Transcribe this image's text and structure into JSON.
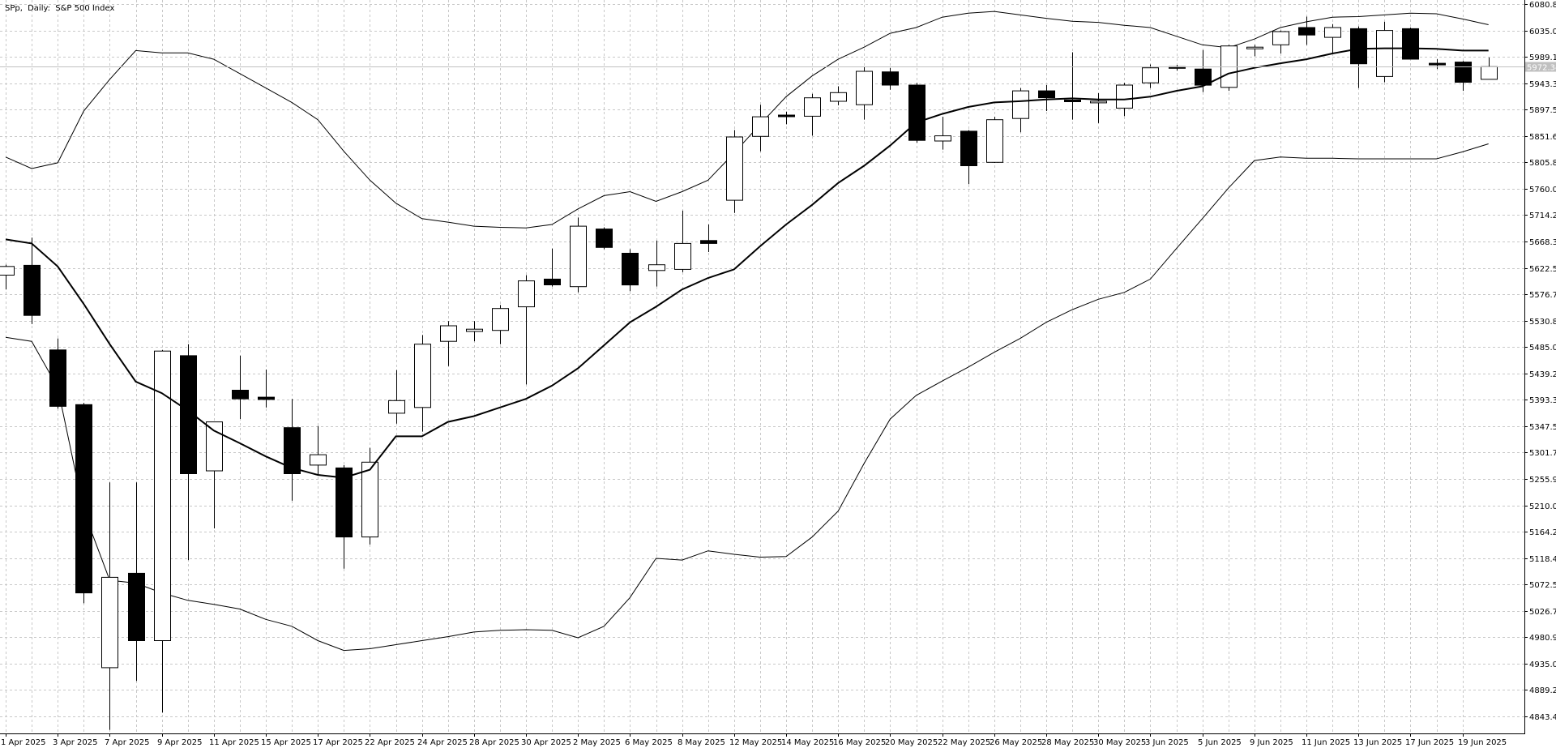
{
  "header": {
    "symbol": "SPp,",
    "timeframe": "Daily:",
    "description": "S&P 500 Index"
  },
  "price_tag": "5972.34",
  "colors": {
    "background": "#ffffff",
    "grid": "#c8c8c8",
    "candle_outline": "#000000",
    "bull_fill": "#ffffff",
    "bear_fill": "#000000",
    "ma_line": "#000000",
    "band_line": "#000000",
    "current_price_line": "#c0c0c0",
    "price_tag_bg": "#c0c0c0"
  },
  "chart_data": {
    "type": "candlestick",
    "title": "SPp, Daily: S&P 500 Index",
    "ylim": [
      4820,
      6085
    ],
    "y_ticks": [
      6080.84,
      6035.01,
      5989.18,
      5943.35,
      5897.52,
      5851.69,
      5805.86,
      5760.03,
      5714.2,
      5668.37,
      5622.54,
      5576.71,
      5530.88,
      5485.05,
      5439.22,
      5393.39,
      5347.56,
      5301.73,
      5255.9,
      5210.07,
      5164.24,
      5118.41,
      5072.58,
      5026.75,
      4980.92,
      4935.09,
      4889.26,
      4843.43
    ],
    "y_tick_labels": [
      "6080.84",
      "6035.01",
      "5989.18",
      "5943.35",
      "5897.52",
      "5851.69",
      "5805.86",
      "5760.03",
      "5714.20",
      "5668.37",
      "5622.54",
      "5576.71",
      "5530.88",
      "5485.05",
      "5439.22",
      "5393.39",
      "5347.56",
      "5301.73",
      "5255.90",
      "5210.07",
      "5164.24",
      "5118.41",
      "5072.58",
      "5026.75",
      "4980.92",
      "4935.09",
      "4889.26",
      "4843.43"
    ],
    "x_labels": [
      {
        "index": 0,
        "label": "1 Apr 2025"
      },
      {
        "index": 2,
        "label": "3 Apr 2025"
      },
      {
        "index": 4,
        "label": "7 Apr 2025"
      },
      {
        "index": 6,
        "label": "9 Apr 2025"
      },
      {
        "index": 8,
        "label": "11 Apr 2025"
      },
      {
        "index": 10,
        "label": "15 Apr 2025"
      },
      {
        "index": 12,
        "label": "17 Apr 2025"
      },
      {
        "index": 14,
        "label": "22 Apr 2025"
      },
      {
        "index": 16,
        "label": "24 Apr 2025"
      },
      {
        "index": 18,
        "label": "28 Apr 2025"
      },
      {
        "index": 20,
        "label": "30 Apr 2025"
      },
      {
        "index": 22,
        "label": "2 May 2025"
      },
      {
        "index": 24,
        "label": "6 May 2025"
      },
      {
        "index": 26,
        "label": "8 May 2025"
      },
      {
        "index": 28,
        "label": "12 May 2025"
      },
      {
        "index": 30,
        "label": "14 May 2025"
      },
      {
        "index": 32,
        "label": "16 May 2025"
      },
      {
        "index": 34,
        "label": "20 May 2025"
      },
      {
        "index": 36,
        "label": "22 May 2025"
      },
      {
        "index": 38,
        "label": "26 May 2025"
      },
      {
        "index": 40,
        "label": "28 May 2025"
      },
      {
        "index": 42,
        "label": "30 May 2025"
      },
      {
        "index": 44,
        "label": "3 Jun 2025"
      },
      {
        "index": 46,
        "label": "5 Jun 2025"
      },
      {
        "index": 48,
        "label": "9 Jun 2025"
      },
      {
        "index": 50,
        "label": "11 Jun 2025"
      },
      {
        "index": 52,
        "label": "13 Jun 2025"
      },
      {
        "index": 54,
        "label": "17 Jun 2025"
      },
      {
        "index": 56,
        "label": "19 Jun 2025"
      }
    ],
    "candles": [
      {
        "o": 5610,
        "h": 5628,
        "l": 5585,
        "c": 5625
      },
      {
        "o": 5627,
        "h": 5675,
        "l": 5525,
        "c": 5540
      },
      {
        "o": 5480,
        "h": 5500,
        "l": 5378,
        "c": 5382
      },
      {
        "o": 5385,
        "h": 5388,
        "l": 5040,
        "c": 5058
      },
      {
        "o": 4928,
        "h": 5250,
        "l": 4820,
        "c": 5085
      },
      {
        "o": 5092,
        "h": 5250,
        "l": 4905,
        "c": 4975
      },
      {
        "o": 4975,
        "h": 5480,
        "l": 4850,
        "c": 5478
      },
      {
        "o": 5470,
        "h": 5490,
        "l": 5115,
        "c": 5265
      },
      {
        "o": 5270,
        "h": 5355,
        "l": 5170,
        "c": 5355
      },
      {
        "o": 5410,
        "h": 5470,
        "l": 5360,
        "c": 5395
      },
      {
        "o": 5398,
        "h": 5446,
        "l": 5380,
        "c": 5394
      },
      {
        "o": 5345,
        "h": 5395,
        "l": 5218,
        "c": 5265
      },
      {
        "o": 5280,
        "h": 5348,
        "l": 5262,
        "c": 5298
      },
      {
        "o": 5275,
        "h": 5280,
        "l": 5100,
        "c": 5155
      },
      {
        "o": 5155,
        "h": 5310,
        "l": 5142,
        "c": 5285
      },
      {
        "o": 5370,
        "h": 5445,
        "l": 5352,
        "c": 5392
      },
      {
        "o": 5380,
        "h": 5506,
        "l": 5338,
        "c": 5490
      },
      {
        "o": 5495,
        "h": 5530,
        "l": 5452,
        "c": 5522
      },
      {
        "o": 5512,
        "h": 5530,
        "l": 5495,
        "c": 5516
      },
      {
        "o": 5514,
        "h": 5558,
        "l": 5490,
        "c": 5552
      },
      {
        "o": 5555,
        "h": 5610,
        "l": 5420,
        "c": 5600
      },
      {
        "o": 5603,
        "h": 5656,
        "l": 5590,
        "c": 5593
      },
      {
        "o": 5590,
        "h": 5710,
        "l": 5580,
        "c": 5695
      },
      {
        "o": 5690,
        "h": 5693,
        "l": 5655,
        "c": 5658
      },
      {
        "o": 5648,
        "h": 5655,
        "l": 5582,
        "c": 5593
      },
      {
        "o": 5618,
        "h": 5670,
        "l": 5590,
        "c": 5628
      },
      {
        "o": 5620,
        "h": 5722,
        "l": 5615,
        "c": 5665
      },
      {
        "o": 5670,
        "h": 5698,
        "l": 5650,
        "c": 5665
      },
      {
        "o": 5740,
        "h": 5862,
        "l": 5718,
        "c": 5850
      },
      {
        "o": 5851,
        "h": 5906,
        "l": 5825,
        "c": 5885
      },
      {
        "o": 5888,
        "h": 5894,
        "l": 5872,
        "c": 5886
      },
      {
        "o": 5886,
        "h": 5925,
        "l": 5852,
        "c": 5918
      },
      {
        "o": 5912,
        "h": 5938,
        "l": 5905,
        "c": 5927
      },
      {
        "o": 5906,
        "h": 5972,
        "l": 5880,
        "c": 5964
      },
      {
        "o": 5963,
        "h": 5970,
        "l": 5932,
        "c": 5940
      },
      {
        "o": 5940,
        "h": 5944,
        "l": 5840,
        "c": 5844
      },
      {
        "o": 5843,
        "h": 5885,
        "l": 5828,
        "c": 5852
      },
      {
        "o": 5860,
        "h": 5862,
        "l": 5768,
        "c": 5800
      },
      {
        "o": 5806,
        "h": 5885,
        "l": 5805,
        "c": 5880
      },
      {
        "o": 5882,
        "h": 5935,
        "l": 5858,
        "c": 5930
      },
      {
        "o": 5930,
        "h": 5940,
        "l": 5895,
        "c": 5918
      },
      {
        "o": 5914,
        "h": 5997,
        "l": 5880,
        "c": 5912
      },
      {
        "o": 5910,
        "h": 5926,
        "l": 5874,
        "c": 5912
      },
      {
        "o": 5900,
        "h": 5944,
        "l": 5886,
        "c": 5940
      },
      {
        "o": 5944,
        "h": 5976,
        "l": 5935,
        "c": 5970
      },
      {
        "o": 5972,
        "h": 5975,
        "l": 5965,
        "c": 5970
      },
      {
        "o": 5968,
        "h": 6001,
        "l": 5928,
        "c": 5940
      },
      {
        "o": 5936,
        "h": 6010,
        "l": 5930,
        "c": 6008
      },
      {
        "o": 6005,
        "h": 6010,
        "l": 5990,
        "c": 6006
      },
      {
        "o": 6010,
        "h": 6035,
        "l": 5995,
        "c": 6033
      },
      {
        "o": 6040,
        "h": 6059,
        "l": 6010,
        "c": 6027
      },
      {
        "o": 6023,
        "h": 6046,
        "l": 5995,
        "c": 6040
      },
      {
        "o": 6038,
        "h": 6042,
        "l": 5935,
        "c": 5977
      },
      {
        "o": 5955,
        "h": 6050,
        "l": 5945,
        "c": 6035
      },
      {
        "o": 6038,
        "h": 6040,
        "l": 5985,
        "c": 5985
      },
      {
        "o": 5978,
        "h": 5985,
        "l": 5968,
        "c": 5976
      },
      {
        "o": 5980,
        "h": 5982,
        "l": 5930,
        "c": 5945
      },
      {
        "o": 5950,
        "h": 5988,
        "l": 5950,
        "c": 5972
      }
    ],
    "ma": [
      5672,
      5665,
      5625,
      5560,
      5490,
      5425,
      5405,
      5375,
      5340,
      5318,
      5295,
      5275,
      5263,
      5258,
      5272,
      5330,
      5330,
      5355,
      5365,
      5380,
      5395,
      5418,
      5448,
      5488,
      5528,
      5555,
      5585,
      5605,
      5620,
      5660,
      5698,
      5732,
      5770,
      5800,
      5835,
      5875,
      5890,
      5902,
      5910,
      5912,
      5915,
      5917,
      5915,
      5915,
      5920,
      5930,
      5938,
      5960,
      5970,
      5978,
      5985,
      5995,
      6003,
      6004,
      6004,
      6003,
      6000,
      6000
    ],
    "upper_band": [
      5815,
      5795,
      5805,
      5895,
      5950,
      6000,
      5996,
      5996,
      5985,
      5960,
      5935,
      5910,
      5880,
      5825,
      5775,
      5735,
      5708,
      5702,
      5695,
      5693,
      5692,
      5698,
      5725,
      5748,
      5755,
      5738,
      5755,
      5775,
      5822,
      5872,
      5920,
      5956,
      5985,
      6006,
      6030,
      6040,
      6058,
      6065,
      6068,
      6062,
      6056,
      6051,
      6049,
      6044,
      6040,
      6025,
      6010,
      6005,
      6020,
      6040,
      6050,
      6058,
      6059,
      6062,
      6065,
      6064,
      6055,
      6045
    ],
    "lower_band": [
      5502,
      5495,
      5415,
      5200,
      5080,
      5075,
      5058,
      5045,
      5038,
      5030,
      5012,
      5000,
      4975,
      4958,
      4961,
      4968,
      4975,
      4982,
      4990,
      4993,
      4994,
      4993,
      4980,
      5000,
      5050,
      5118,
      5115,
      5131,
      5125,
      5120,
      5121,
      5155,
      5200,
      5283,
      5360,
      5401,
      5426,
      5450,
      5476,
      5500,
      5528,
      5550,
      5568,
      5580,
      5603,
      5656,
      5708,
      5761,
      5809,
      5815,
      5813,
      5813,
      5812,
      5812,
      5812,
      5812,
      5824,
      5838
    ]
  }
}
